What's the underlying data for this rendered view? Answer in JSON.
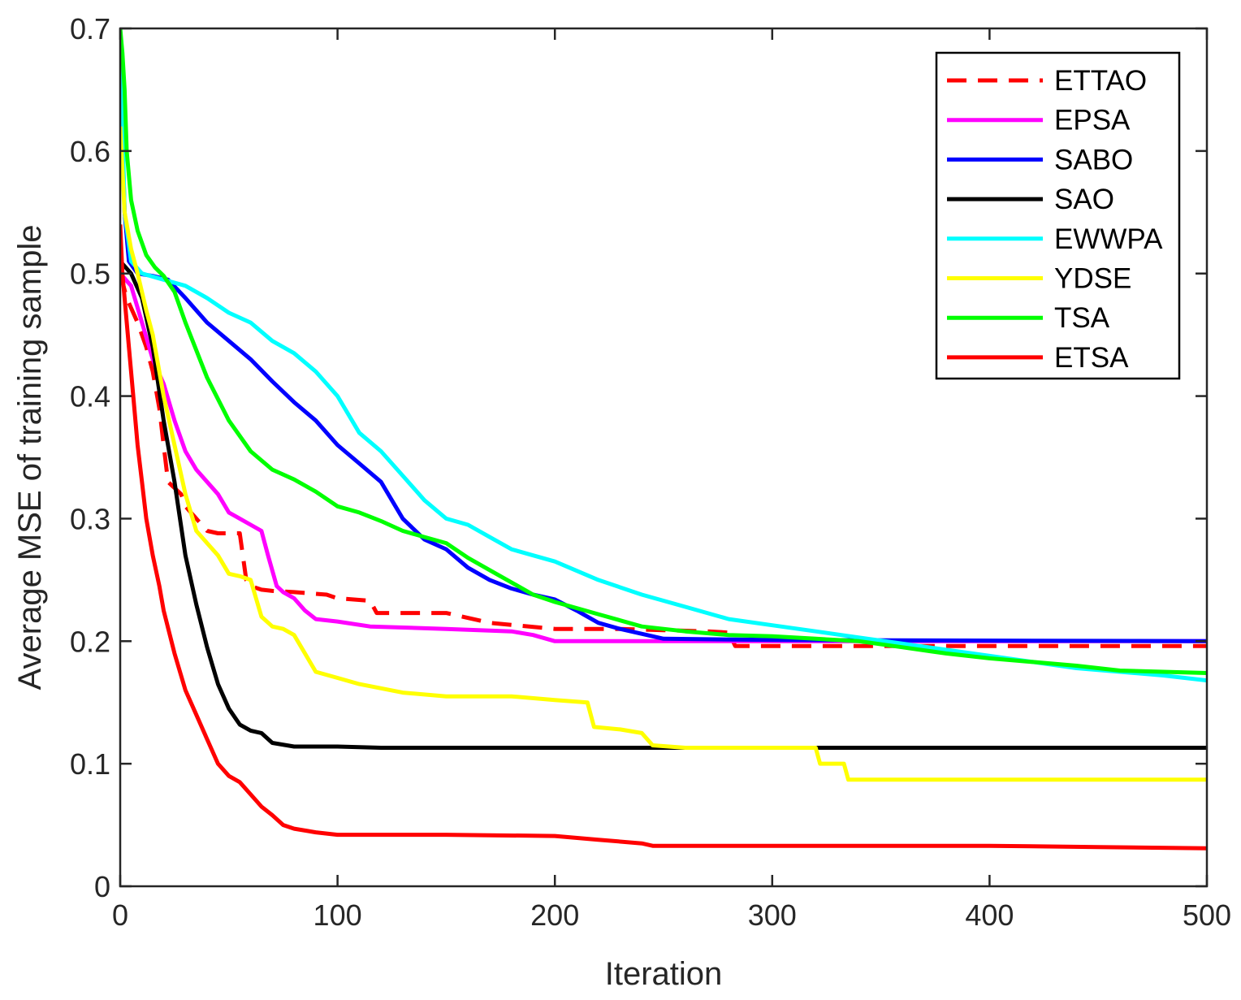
{
  "chart_data": {
    "type": "line",
    "title": "",
    "xlabel": "Iteration",
    "ylabel": "Average MSE of training sample",
    "xlim": [
      0,
      500
    ],
    "ylim": [
      0,
      0.7
    ],
    "xticks": [
      0,
      100,
      200,
      300,
      400,
      500
    ],
    "xtick_labels": [
      "0",
      "100",
      "200",
      "300",
      "400",
      "500"
    ],
    "yticks": [
      0,
      0.1,
      0.2,
      0.3,
      0.4,
      0.5,
      0.6,
      0.7
    ],
    "ytick_labels": [
      "0",
      "0.1",
      "0.2",
      "0.3",
      "0.4",
      "0.5",
      "0.6",
      "0.7"
    ],
    "grid": false,
    "legend_position": "top-right",
    "series": [
      {
        "name": "ETTAO",
        "color": "#ff0000",
        "dash": "dashed",
        "x": [
          0,
          3,
          8,
          12,
          15,
          18,
          20,
          22,
          25,
          28,
          30,
          35,
          40,
          45,
          55,
          58,
          60,
          65,
          70,
          80,
          95,
          100,
          115,
          118,
          150,
          170,
          200,
          230,
          250,
          270,
          280,
          283,
          300,
          500
        ],
        "y": [
          0.5,
          0.48,
          0.46,
          0.44,
          0.42,
          0.39,
          0.36,
          0.33,
          0.325,
          0.32,
          0.31,
          0.3,
          0.29,
          0.288,
          0.288,
          0.25,
          0.245,
          0.242,
          0.241,
          0.24,
          0.238,
          0.235,
          0.233,
          0.223,
          0.223,
          0.215,
          0.21,
          0.21,
          0.209,
          0.208,
          0.207,
          0.196,
          0.196,
          0.196
        ]
      },
      {
        "name": "EPSA",
        "color": "#ff00ff",
        "dash": "solid",
        "x": [
          0,
          5,
          10,
          15,
          20,
          25,
          30,
          35,
          40,
          45,
          50,
          55,
          60,
          65,
          68,
          72,
          75,
          80,
          85,
          90,
          100,
          115,
          150,
          180,
          190,
          200,
          300,
          500
        ],
        "y": [
          0.5,
          0.49,
          0.46,
          0.43,
          0.41,
          0.38,
          0.355,
          0.34,
          0.33,
          0.32,
          0.305,
          0.3,
          0.295,
          0.29,
          0.27,
          0.245,
          0.24,
          0.235,
          0.225,
          0.218,
          0.216,
          0.212,
          0.21,
          0.208,
          0.205,
          0.2,
          0.2,
          0.2
        ]
      },
      {
        "name": "SABO",
        "color": "#0000ff",
        "dash": "solid",
        "x": [
          0,
          2,
          4,
          8,
          15,
          22,
          30,
          40,
          50,
          60,
          70,
          80,
          90,
          100,
          110,
          120,
          130,
          140,
          150,
          160,
          170,
          180,
          190,
          200,
          210,
          220,
          230,
          250,
          300,
          500
        ],
        "y": [
          0.68,
          0.55,
          0.51,
          0.5,
          0.498,
          0.495,
          0.48,
          0.46,
          0.445,
          0.43,
          0.412,
          0.395,
          0.38,
          0.36,
          0.345,
          0.33,
          0.3,
          0.283,
          0.275,
          0.26,
          0.25,
          0.243,
          0.238,
          0.234,
          0.225,
          0.215,
          0.21,
          0.202,
          0.201,
          0.2
        ]
      },
      {
        "name": "SAO",
        "color": "#000000",
        "dash": "solid",
        "x": [
          0,
          5,
          10,
          15,
          20,
          25,
          30,
          35,
          40,
          45,
          50,
          55,
          60,
          65,
          70,
          80,
          100,
          120,
          200,
          500
        ],
        "y": [
          0.51,
          0.5,
          0.48,
          0.44,
          0.38,
          0.33,
          0.27,
          0.23,
          0.195,
          0.165,
          0.145,
          0.132,
          0.127,
          0.125,
          0.117,
          0.114,
          0.114,
          0.113,
          0.113,
          0.113
        ]
      },
      {
        "name": "EWWPA",
        "color": "#00ffff",
        "dash": "solid",
        "x": [
          0,
          2,
          5,
          10,
          20,
          30,
          40,
          50,
          60,
          70,
          80,
          90,
          100,
          110,
          120,
          130,
          140,
          150,
          160,
          170,
          180,
          190,
          200,
          220,
          240,
          260,
          280,
          300,
          320,
          340,
          360,
          380,
          400,
          420,
          440,
          460,
          480,
          500
        ],
        "y": [
          0.7,
          0.55,
          0.51,
          0.5,
          0.495,
          0.49,
          0.48,
          0.468,
          0.46,
          0.445,
          0.435,
          0.42,
          0.4,
          0.37,
          0.355,
          0.335,
          0.315,
          0.3,
          0.295,
          0.285,
          0.275,
          0.27,
          0.265,
          0.25,
          0.238,
          0.228,
          0.218,
          0.213,
          0.208,
          0.203,
          0.198,
          0.193,
          0.188,
          0.183,
          0.178,
          0.175,
          0.172,
          0.168
        ]
      },
      {
        "name": "YDSE",
        "color": "#ffff00",
        "dash": "solid",
        "x": [
          0,
          2,
          5,
          8,
          12,
          15,
          20,
          25,
          30,
          35,
          40,
          45,
          50,
          55,
          60,
          65,
          70,
          75,
          80,
          85,
          90,
          100,
          110,
          130,
          150,
          180,
          200,
          215,
          218,
          230,
          240,
          245,
          260,
          300,
          320,
          322,
          333,
          335,
          500
        ],
        "y": [
          0.62,
          0.55,
          0.52,
          0.5,
          0.47,
          0.45,
          0.4,
          0.36,
          0.32,
          0.29,
          0.28,
          0.27,
          0.255,
          0.253,
          0.25,
          0.22,
          0.212,
          0.21,
          0.205,
          0.19,
          0.175,
          0.17,
          0.165,
          0.158,
          0.155,
          0.155,
          0.152,
          0.15,
          0.13,
          0.128,
          0.125,
          0.115,
          0.113,
          0.113,
          0.113,
          0.1,
          0.1,
          0.087,
          0.087
        ]
      },
      {
        "name": "TSA",
        "color": "#00ff00",
        "dash": "solid",
        "x": [
          0,
          1,
          2,
          3,
          5,
          8,
          12,
          16,
          20,
          25,
          30,
          40,
          50,
          60,
          70,
          80,
          90,
          100,
          110,
          120,
          130,
          140,
          150,
          160,
          170,
          180,
          190,
          200,
          220,
          240,
          260,
          280,
          300,
          320,
          340,
          360,
          380,
          400,
          420,
          440,
          460,
          480,
          500
        ],
        "y": [
          0.7,
          0.68,
          0.65,
          0.6,
          0.56,
          0.535,
          0.515,
          0.505,
          0.498,
          0.485,
          0.46,
          0.415,
          0.38,
          0.355,
          0.34,
          0.332,
          0.322,
          0.31,
          0.305,
          0.298,
          0.29,
          0.285,
          0.28,
          0.268,
          0.258,
          0.248,
          0.238,
          0.232,
          0.222,
          0.212,
          0.208,
          0.205,
          0.204,
          0.202,
          0.2,
          0.195,
          0.19,
          0.186,
          0.183,
          0.18,
          0.176,
          0.175,
          0.174
        ]
      },
      {
        "name": "ETSA",
        "color": "#ff0000",
        "dash": "solid",
        "x": [
          0,
          1,
          2,
          4,
          6,
          8,
          10,
          12,
          15,
          18,
          20,
          25,
          30,
          35,
          40,
          45,
          50,
          55,
          60,
          65,
          70,
          75,
          80,
          90,
          100,
          150,
          200,
          220,
          240,
          245,
          300,
          400,
          450,
          500
        ],
        "y": [
          0.54,
          0.5,
          0.48,
          0.44,
          0.4,
          0.36,
          0.33,
          0.3,
          0.27,
          0.245,
          0.225,
          0.19,
          0.16,
          0.14,
          0.12,
          0.1,
          0.09,
          0.085,
          0.075,
          0.065,
          0.058,
          0.05,
          0.047,
          0.044,
          0.042,
          0.042,
          0.041,
          0.038,
          0.035,
          0.033,
          0.033,
          0.033,
          0.032,
          0.031
        ]
      }
    ]
  }
}
